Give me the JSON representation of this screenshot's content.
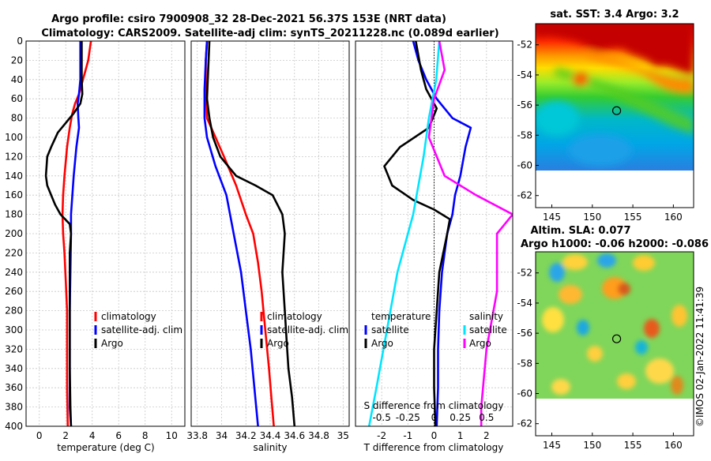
{
  "title": {
    "line1": "Argo profile: csiro 7900908_32 28-Dec-2021 56.37S 153E (NRT data)",
    "line2": "Climatology: CARS2009. Satellite-adj clim: synTS_20211228.nc (0.089d earlier)"
  },
  "colors": {
    "climatology": "#ff0000",
    "satellite": "#0000ff",
    "argo": "#000000",
    "sat_salinity": "#00e5ff",
    "argo_salinity": "#ff00ff"
  },
  "chart_data": [
    {
      "type": "line",
      "id": "temperature",
      "xlabel": "temperature (deg C)",
      "xlim": [
        -1,
        11
      ],
      "xticks": [
        0,
        2,
        4,
        6,
        8,
        10
      ],
      "ylim": [
        0,
        400
      ],
      "yticks": [
        0,
        20,
        40,
        60,
        80,
        100,
        120,
        140,
        160,
        180,
        200,
        220,
        240,
        260,
        280,
        300,
        320,
        340,
        360,
        380,
        400
      ],
      "legend": [
        "climatology",
        "satellite-adj. clim",
        "Argo"
      ],
      "series": [
        {
          "name": "climatology",
          "color": "#ff0000",
          "points": [
            [
              3.9,
              0
            ],
            [
              3.8,
              10
            ],
            [
              3.7,
              20
            ],
            [
              3.5,
              30
            ],
            [
              3.3,
              40
            ],
            [
              3.0,
              55
            ],
            [
              2.7,
              65
            ],
            [
              2.5,
              75
            ],
            [
              2.3,
              90
            ],
            [
              2.1,
              110
            ],
            [
              1.9,
              140
            ],
            [
              1.8,
              160
            ],
            [
              1.75,
              180
            ],
            [
              1.8,
              200
            ],
            [
              1.9,
              220
            ],
            [
              2.0,
              250
            ],
            [
              2.1,
              280
            ],
            [
              2.1,
              320
            ],
            [
              2.1,
              360
            ],
            [
              2.15,
              400
            ]
          ]
        },
        {
          "name": "satellite-adj. clim",
          "color": "#0000ff",
          "points": [
            [
              3.1,
              0
            ],
            [
              3.1,
              20
            ],
            [
              3.1,
              40
            ],
            [
              3.0,
              55
            ],
            [
              2.9,
              65
            ],
            [
              2.95,
              80
            ],
            [
              3.0,
              90
            ],
            [
              2.8,
              110
            ],
            [
              2.6,
              140
            ],
            [
              2.4,
              180
            ],
            [
              2.4,
              200
            ],
            [
              2.35,
              240
            ],
            [
              2.3,
              280
            ],
            [
              2.3,
              320
            ],
            [
              2.3,
              360
            ],
            [
              2.3,
              380
            ],
            [
              2.4,
              400
            ]
          ]
        },
        {
          "name": "Argo",
          "color": "#000000",
          "points": [
            [
              3.2,
              0
            ],
            [
              3.2,
              20
            ],
            [
              3.2,
              40
            ],
            [
              3.25,
              55
            ],
            [
              3.1,
              65
            ],
            [
              2.6,
              75
            ],
            [
              2.0,
              85
            ],
            [
              1.4,
              95
            ],
            [
              0.9,
              110
            ],
            [
              0.6,
              120
            ],
            [
              0.5,
              140
            ],
            [
              0.6,
              150
            ],
            [
              0.9,
              160
            ],
            [
              1.2,
              170
            ],
            [
              1.6,
              180
            ],
            [
              2.3,
              190
            ],
            [
              2.4,
              200
            ],
            [
              2.3,
              220
            ],
            [
              2.3,
              260
            ],
            [
              2.3,
              300
            ],
            [
              2.3,
              340
            ],
            [
              2.35,
              380
            ],
            [
              2.4,
              400
            ]
          ]
        }
      ]
    },
    {
      "type": "line",
      "id": "salinity",
      "xlabel": "salinity",
      "xlim": [
        33.75,
        35.05
      ],
      "xticks": [
        33.8,
        34,
        34.2,
        34.4,
        34.6,
        34.8,
        35
      ],
      "xticklabels": [
        "33.8",
        "34",
        "34.2",
        "34.4",
        "34.6",
        "34.8",
        "35"
      ],
      "ylim": [
        0,
        400
      ],
      "legend": [
        "climatology",
        "satellite-adj. clim",
        "Argo"
      ],
      "series": [
        {
          "name": "climatology",
          "color": "#ff0000",
          "points": [
            [
              33.88,
              0
            ],
            [
              33.87,
              20
            ],
            [
              33.87,
              50
            ],
            [
              33.88,
              80
            ],
            [
              33.95,
              100
            ],
            [
              34.02,
              120
            ],
            [
              34.12,
              150
            ],
            [
              34.2,
              180
            ],
            [
              34.26,
              200
            ],
            [
              34.3,
              230
            ],
            [
              34.33,
              260
            ],
            [
              34.36,
              300
            ],
            [
              34.39,
              340
            ],
            [
              34.41,
              370
            ],
            [
              34.43,
              400
            ]
          ]
        },
        {
          "name": "satellite-adj. clim",
          "color": "#0000ff",
          "points": [
            [
              33.88,
              0
            ],
            [
              33.87,
              20
            ],
            [
              33.86,
              50
            ],
            [
              33.86,
              80
            ],
            [
              33.88,
              100
            ],
            [
              33.95,
              130
            ],
            [
              34.04,
              160
            ],
            [
              34.1,
              200
            ],
            [
              34.16,
              240
            ],
            [
              34.2,
              280
            ],
            [
              34.24,
              320
            ],
            [
              34.27,
              360
            ],
            [
              34.3,
              400
            ]
          ]
        },
        {
          "name": "Argo",
          "color": "#000000",
          "points": [
            [
              33.9,
              0
            ],
            [
              33.89,
              30
            ],
            [
              33.88,
              60
            ],
            [
              33.9,
              80
            ],
            [
              33.93,
              100
            ],
            [
              33.99,
              120
            ],
            [
              34.12,
              140
            ],
            [
              34.28,
              150
            ],
            [
              34.42,
              160
            ],
            [
              34.5,
              180
            ],
            [
              34.52,
              200
            ],
            [
              34.5,
              240
            ],
            [
              34.52,
              280
            ],
            [
              34.54,
              320
            ],
            [
              34.55,
              340
            ],
            [
              34.58,
              370
            ],
            [
              34.6,
              400
            ]
          ]
        }
      ]
    },
    {
      "type": "line",
      "id": "difference",
      "xlabel": "T difference from climatology",
      "xlabel_top": "S difference from climatology",
      "xlim": [
        -3,
        3
      ],
      "xticks": [
        -2,
        -1,
        0,
        1,
        2
      ],
      "xticklabels": [
        "-2",
        "-1",
        "0",
        "1",
        "2"
      ],
      "top_ticks": [
        -0.5,
        -0.25,
        0,
        0.25,
        0.5
      ],
      "top_ticklabels": [
        "-0.5",
        "-0.25",
        "0",
        "0.25",
        "0.5"
      ],
      "ylim": [
        0,
        400
      ],
      "legend_left_header": "temperature",
      "legend_right_header": "salinity",
      "legend": [
        "satellite",
        "Argo",
        "satellite",
        "Argo"
      ],
      "series": [
        {
          "name": "T satellite",
          "color": "#0000ff",
          "points": [
            [
              -0.8,
              0
            ],
            [
              -0.6,
              20
            ],
            [
              -0.3,
              40
            ],
            [
              0.1,
              60
            ],
            [
              0.7,
              80
            ],
            [
              1.4,
              90
            ],
            [
              1.2,
              110
            ],
            [
              1.0,
              140
            ],
            [
              0.8,
              160
            ],
            [
              0.7,
              180
            ],
            [
              0.5,
              200
            ],
            [
              0.3,
              240
            ],
            [
              0.2,
              280
            ],
            [
              0.15,
              320
            ],
            [
              0.15,
              360
            ],
            [
              0.1,
              400
            ]
          ]
        },
        {
          "name": "T Argo",
          "color": "#000000",
          "points": [
            [
              -0.7,
              0
            ],
            [
              -0.5,
              30
            ],
            [
              -0.3,
              50
            ],
            [
              0.1,
              70
            ],
            [
              -0.2,
              90
            ],
            [
              -1.3,
              110
            ],
            [
              -1.9,
              130
            ],
            [
              -1.6,
              150
            ],
            [
              -0.8,
              165
            ],
            [
              0.0,
              175
            ],
            [
              0.6,
              185
            ],
            [
              0.5,
              200
            ],
            [
              0.2,
              240
            ],
            [
              0.1,
              280
            ],
            [
              0.0,
              320
            ],
            [
              0.0,
              360
            ],
            [
              0.05,
              400
            ]
          ]
        },
        {
          "name": "S satellite",
          "color": "#00e5ff",
          "points": [
            [
              0.05,
              0
            ],
            [
              0.02,
              40
            ],
            [
              -0.05,
              80
            ],
            [
              -0.1,
              120
            ],
            [
              -0.2,
              180
            ],
            [
              -0.35,
              240
            ],
            [
              -0.45,
              300
            ],
            [
              -0.55,
              360
            ],
            [
              -0.62,
              400
            ]
          ]
        },
        {
          "name": "S Argo",
          "color": "#ff00ff",
          "points": [
            [
              0.05,
              0
            ],
            [
              0.1,
              30
            ],
            [
              0.0,
              60
            ],
            [
              -0.05,
              100
            ],
            [
              0.1,
              140
            ],
            [
              0.4,
              160
            ],
            [
              0.75,
              180
            ],
            [
              0.6,
              200
            ],
            [
              0.6,
              260
            ],
            [
              0.5,
              320
            ],
            [
              0.45,
              380
            ],
            [
              0.45,
              400
            ]
          ]
        }
      ]
    },
    {
      "type": "heatmap",
      "id": "sst_map",
      "title": "sat. SST: 3.4 Argo: 3.2",
      "xlim": [
        143,
        162.5
      ],
      "ylim": [
        -62.8,
        -50.6
      ],
      "xticks": [
        145,
        150,
        155,
        160
      ],
      "yticks": [
        -52,
        -54,
        -56,
        -58,
        -60,
        -62
      ],
      "yticklabels": [
        "-52",
        "-54",
        "-56",
        "-58",
        "-60",
        "-62"
      ],
      "data_lat_range": [
        -60,
        -50.6
      ],
      "profile_location": [
        153,
        -56.37
      ]
    },
    {
      "type": "heatmap",
      "id": "sla_map",
      "title_line1": "Altim. SLA: 0.077",
      "title_line2": "Argo h1000: -0.06 h2000: -0.086",
      "xlim": [
        143,
        162.5
      ],
      "ylim": [
        -62.8,
        -50.6
      ],
      "xticks": [
        145,
        150,
        155,
        160
      ],
      "yticks": [
        -52,
        -54,
        -56,
        -58,
        -60,
        -62
      ],
      "yticklabels": [
        "-52",
        "-54",
        "-56",
        "-58",
        "-60",
        "-62"
      ],
      "data_lat_range": [
        -60,
        -50.6
      ],
      "profile_location": [
        153,
        -56.37
      ]
    }
  ],
  "watermark": "©IMOS 02-Jan-2022 11:41:39"
}
